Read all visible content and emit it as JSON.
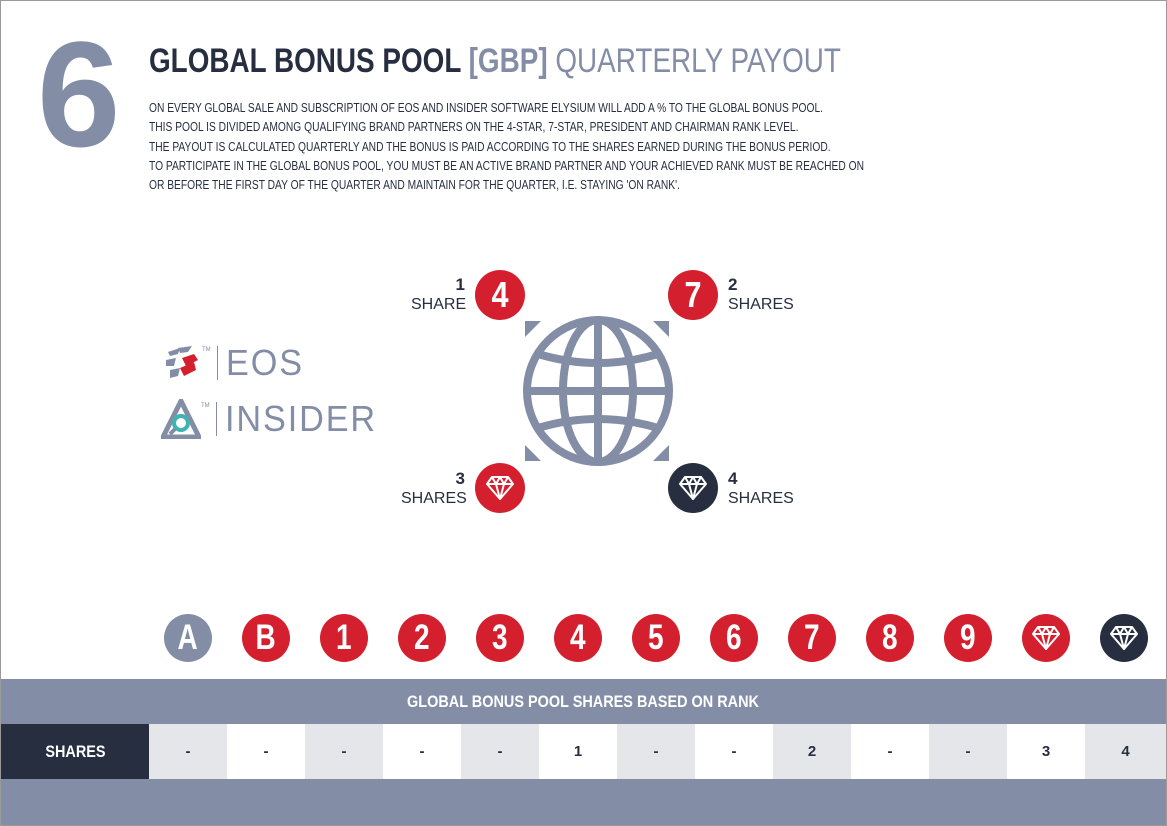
{
  "section_number": "6",
  "title": {
    "main": "GLOBAL BONUS POOL",
    "abbr": "[GBP]",
    "suffix": "QUARTERLY PAYOUT"
  },
  "intro_lines": [
    "ON EVERY GLOBAL SALE AND SUBSCRIPTION OF EOS AND INSIDER SOFTWARE ELYSIUM WILL ADD A % TO THE GLOBAL BONUS POOL.",
    "THIS POOL IS DIVIDED AMONG QUALIFYING BRAND PARTNERS ON THE 4-STAR, 7-STAR, PRESIDENT AND CHAIRMAN RANK LEVEL.",
    "THE PAYOUT IS CALCULATED QUARTERLY AND THE BONUS IS PAID ACCORDING TO THE SHARES EARNED DURING THE BONUS PERIOD.",
    "TO PARTICIPATE IN THE GLOBAL BONUS POOL, YOU MUST BE AN ACTIVE BRAND PARTNER AND YOUR ACHIEVED RANK MUST BE REACHED ON",
    "OR BEFORE THE FIRST DAY OF THE QUARTER AND MAINTAIN FOR THE QUARTER, I.E. STAYING 'ON RANK'."
  ],
  "diagram": {
    "top_left": {
      "count": "1",
      "label": "SHARE",
      "badge": "4"
    },
    "top_right": {
      "count": "2",
      "label": "SHARES",
      "badge": "7"
    },
    "bottom_left": {
      "count": "3",
      "label": "SHARES",
      "icon": "diamond-icon"
    },
    "bottom_right": {
      "count": "4",
      "label": "SHARES",
      "icon": "diamond-icon"
    }
  },
  "brands": {
    "eos": "EOS",
    "insider": "INSIDER",
    "tm": "TM"
  },
  "ranks": [
    {
      "label": "A",
      "style": "grey"
    },
    {
      "label": "B",
      "style": "red"
    },
    {
      "label": "1",
      "style": "red"
    },
    {
      "label": "2",
      "style": "red"
    },
    {
      "label": "3",
      "style": "red"
    },
    {
      "label": "4",
      "style": "red"
    },
    {
      "label": "5",
      "style": "red"
    },
    {
      "label": "6",
      "style": "red"
    },
    {
      "label": "7",
      "style": "red"
    },
    {
      "label": "8",
      "style": "red"
    },
    {
      "label": "9",
      "style": "red"
    },
    {
      "label": "",
      "style": "red",
      "icon": "diamond-icon"
    },
    {
      "label": "",
      "style": "navy",
      "icon": "diamond-icon"
    }
  ],
  "table": {
    "header": "GLOBAL BONUS POOL SHARES BASED ON RANK",
    "row_label": "SHARES",
    "values": [
      "-",
      "-",
      "-",
      "-",
      "-",
      "1",
      "-",
      "-",
      "2",
      "-",
      "-",
      "3",
      "4"
    ]
  },
  "colors": {
    "red": "#d4202e",
    "navy": "#262e40",
    "grey": "#838ea6",
    "light": "#e5e6ea"
  }
}
